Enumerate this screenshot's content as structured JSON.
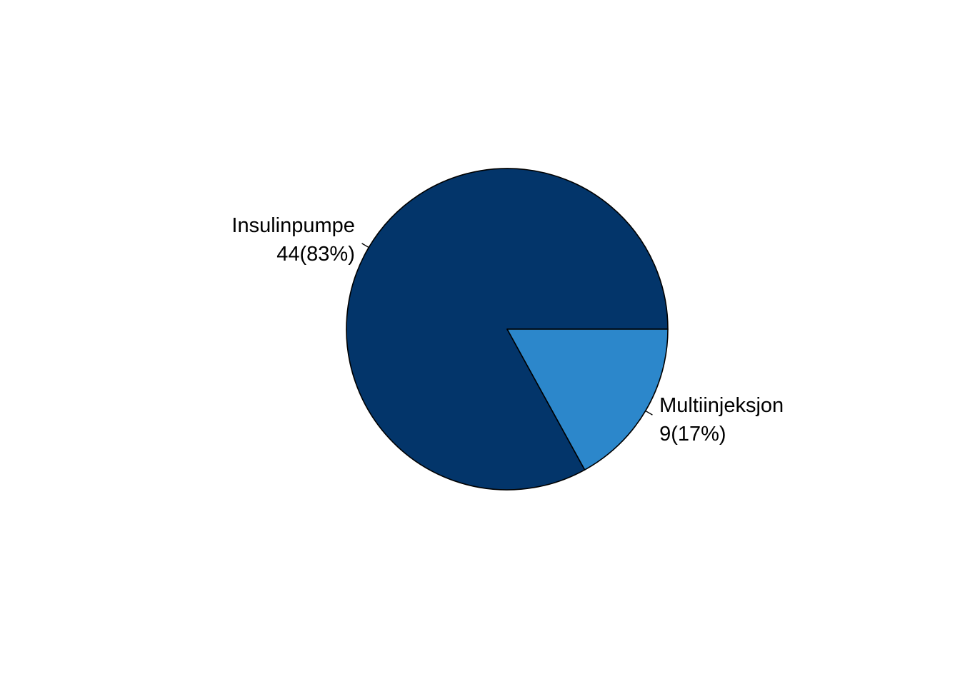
{
  "chart_data": {
    "type": "pie",
    "slices": [
      {
        "label": "Insulinpumpe",
        "value": 44,
        "value_text": "44(83%)",
        "color": "#03356A"
      },
      {
        "label": "Multiinjeksjon",
        "value": 9,
        "value_text": "9(17%)",
        "color": "#2C87CB"
      }
    ],
    "start": "3 o'clock",
    "direction": "counterclockwise",
    "border_color": "#000000",
    "legend": "none"
  }
}
